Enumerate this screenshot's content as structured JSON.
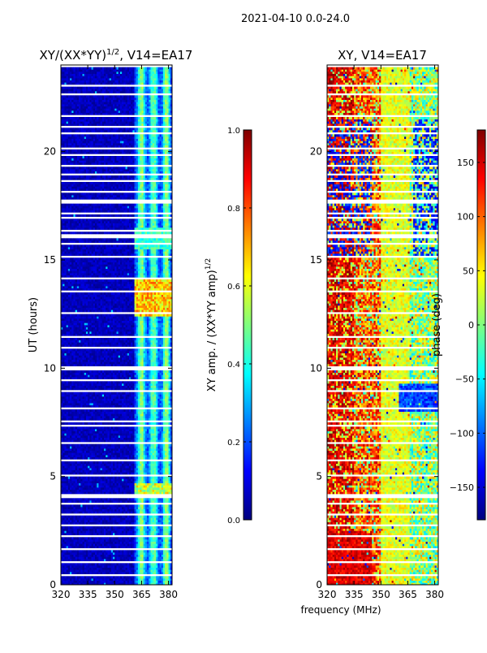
{
  "suptitle": "2021-04-10 0.0-24.0",
  "colors": {
    "jet": [
      "#00007f",
      "#0000ff",
      "#007fff",
      "#00ffff",
      "#7fff7f",
      "#ffff00",
      "#ff7f00",
      "#ff0000",
      "#7f0000"
    ],
    "background": "#ffffff"
  },
  "chart_data": [
    {
      "type": "heatmap",
      "title_main": "XY/(XX*YY)",
      "title_sup": "1/2",
      "title_rest": ", V14=EA17",
      "xlabel": "",
      "ylabel": "UT (hours)",
      "xlim": [
        320,
        382
      ],
      "ylim": [
        0,
        24
      ],
      "x_ticks": [
        320,
        335,
        350,
        365,
        380
      ],
      "y_ticks": [
        0,
        5,
        10,
        15,
        20
      ],
      "value_range": [
        0.0,
        1.0
      ],
      "colorbar": {
        "label_main": "XY amp. / (XX*YY amp)",
        "label_sup": "1/2",
        "ticks": [
          "0.0",
          "0.2",
          "0.4",
          "0.6",
          "0.8",
          "1.0"
        ],
        "tick_values": [
          0.0,
          0.2,
          0.4,
          0.6,
          0.8,
          1.0
        ],
        "range": [
          0.0,
          1.0
        ]
      },
      "description": "Mostly low (~0.05) across 320-360 MHz; elevated values (0.3-0.6) between ~361-381 MHz; peaks ~0.75 near 12.5-14 h; horizontal white gaps (flagged data)."
    },
    {
      "type": "heatmap",
      "title": "XY, V14=EA17",
      "xlabel": "frequency (MHz)",
      "ylabel": "",
      "xlim": [
        320,
        382
      ],
      "ylim": [
        0,
        24
      ],
      "x_ticks": [
        320,
        335,
        350,
        365,
        380
      ],
      "y_ticks": [
        0,
        5,
        10,
        15,
        20
      ],
      "value_range": [
        -180,
        180
      ],
      "colorbar": {
        "label": "phase (deg)",
        "ticks": [
          "−150",
          "−100",
          "−50",
          "0",
          "50",
          "100",
          "150"
        ],
        "tick_values": [
          -150,
          -100,
          -50,
          0,
          50,
          100,
          150
        ],
        "range": [
          -180,
          180
        ]
      },
      "description": "Phase varies in horizontal bands; reddish (~150 deg) dominant near 320-335 MHz, yellow/green (~0-50 deg) in 350-365 MHz, blue patches near 15-21 h."
    }
  ]
}
